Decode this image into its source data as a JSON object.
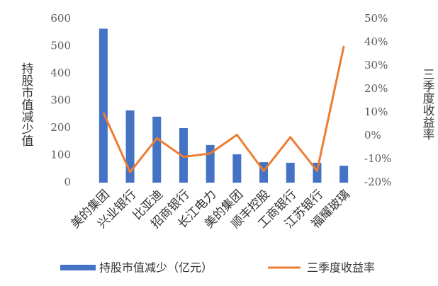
{
  "chart_data": {
    "type": "bar-line",
    "y_label": "持股市值减少值",
    "y2_label": "三季度收益率",
    "categories": [
      "美的集团",
      "兴业银行",
      "比亚迪",
      "招商银行",
      "长江电力",
      "美的集团",
      "顺丰控股",
      "工商银行",
      "江苏银行",
      "福耀玻璃"
    ],
    "series": [
      {
        "name": "持股市值减少（亿元）",
        "type": "bar",
        "color": "#4472c4",
        "values": [
          565,
          265,
          242,
          200,
          138,
          104,
          75,
          73,
          73,
          62
        ]
      },
      {
        "name": "三季度收益率",
        "type": "line",
        "axis": "y2",
        "color": "#ed7d31",
        "values": [
          10,
          -15.5,
          -1,
          -9,
          -7.5,
          0.5,
          -15,
          -0.5,
          -15,
          38.5
        ]
      }
    ],
    "ylim": [
      0,
      600
    ],
    "yticks": [
      0,
      100,
      200,
      300,
      400,
      500,
      600
    ],
    "y2lim": [
      -20,
      50
    ],
    "y2ticks": [
      {
        "value": -20,
        "label": "-20%"
      },
      {
        "value": -10,
        "label": "-10%"
      },
      {
        "value": 0,
        "label": "0%"
      },
      {
        "value": 10,
        "label": "10%"
      },
      {
        "value": 20,
        "label": "20%"
      },
      {
        "value": 30,
        "label": "30%"
      },
      {
        "value": 40,
        "label": "40%"
      },
      {
        "value": 50,
        "label": "50%"
      }
    ],
    "legend": "bottom",
    "grid": false
  }
}
